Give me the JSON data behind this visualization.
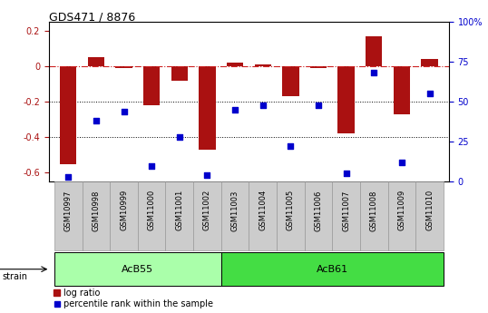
{
  "title": "GDS471 / 8876",
  "samples": [
    "GSM10997",
    "GSM10998",
    "GSM10999",
    "GSM11000",
    "GSM11001",
    "GSM11002",
    "GSM11003",
    "GSM11004",
    "GSM11005",
    "GSM11006",
    "GSM11007",
    "GSM11008",
    "GSM11009",
    "GSM11010"
  ],
  "log_ratio": [
    -0.55,
    0.05,
    -0.01,
    -0.22,
    -0.08,
    -0.47,
    0.02,
    0.01,
    -0.17,
    -0.01,
    -0.38,
    0.17,
    -0.27,
    0.04
  ],
  "percentile": [
    3,
    38,
    44,
    10,
    28,
    4,
    45,
    48,
    22,
    48,
    5,
    68,
    12,
    55
  ],
  "bar_color": "#aa1111",
  "dot_color": "#0000cc",
  "line_color": "#cc2222",
  "ylim_left": [
    -0.65,
    0.25
  ],
  "ylim_right": [
    0,
    100
  ],
  "yticks_left": [
    -0.6,
    -0.4,
    -0.2,
    0.0,
    0.2
  ],
  "yticks_right": [
    0,
    25,
    50,
    75,
    100
  ],
  "groups": [
    {
      "label": "AcB55",
      "start": 0,
      "end": 5,
      "color": "#aaffaa"
    },
    {
      "label": "AcB61",
      "start": 6,
      "end": 13,
      "color": "#44dd44"
    }
  ],
  "strain_label": "strain",
  "legend_entries": [
    "log ratio",
    "percentile rank within the sample"
  ],
  "bg_color": "#ffffff",
  "plot_bg": "#ffffff",
  "hline_y": 0.0,
  "dotted_lines": [
    -0.2,
    -0.4
  ],
  "bar_width": 0.6,
  "dot_size": 25,
  "sample_box_color": "#cccccc",
  "sample_box_edge": "#999999"
}
